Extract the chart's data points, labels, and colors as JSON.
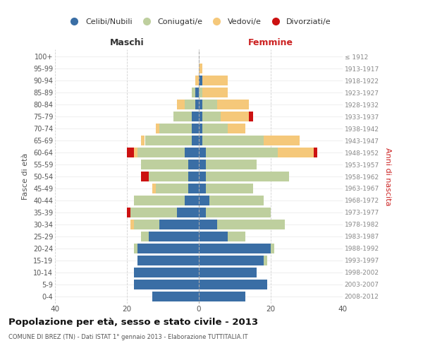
{
  "age_groups": [
    "0-4",
    "5-9",
    "10-14",
    "15-19",
    "20-24",
    "25-29",
    "30-34",
    "35-39",
    "40-44",
    "45-49",
    "50-54",
    "55-59",
    "60-64",
    "65-69",
    "70-74",
    "75-79",
    "80-84",
    "85-89",
    "90-94",
    "95-99",
    "100+"
  ],
  "birth_years": [
    "2008-2012",
    "2003-2007",
    "1998-2002",
    "1993-1997",
    "1988-1992",
    "1983-1987",
    "1978-1982",
    "1973-1977",
    "1968-1972",
    "1963-1967",
    "1958-1962",
    "1953-1957",
    "1948-1952",
    "1943-1947",
    "1938-1942",
    "1933-1937",
    "1928-1932",
    "1923-1927",
    "1918-1922",
    "1913-1917",
    "≤ 1912"
  ],
  "colors": {
    "celibi": "#3A6EA5",
    "coniugati": "#BECF9E",
    "vedovi": "#F5C87A",
    "divorziati": "#CC1111"
  },
  "maschi": {
    "celibi": [
      13,
      18,
      18,
      17,
      17,
      14,
      11,
      6,
      4,
      3,
      3,
      3,
      4,
      2,
      2,
      2,
      1,
      1,
      0,
      0,
      0
    ],
    "coniugati": [
      0,
      0,
      0,
      0,
      1,
      2,
      7,
      13,
      14,
      9,
      11,
      13,
      13,
      13,
      9,
      5,
      3,
      1,
      0,
      0,
      0
    ],
    "vedovi": [
      0,
      0,
      0,
      0,
      0,
      0,
      1,
      0,
      0,
      1,
      0,
      0,
      1,
      1,
      1,
      0,
      2,
      0,
      1,
      0,
      0
    ],
    "divorziati": [
      0,
      0,
      0,
      0,
      0,
      0,
      0,
      1,
      0,
      0,
      2,
      0,
      2,
      0,
      0,
      0,
      0,
      0,
      0,
      0,
      0
    ]
  },
  "femmine": {
    "celibi": [
      13,
      19,
      16,
      18,
      20,
      8,
      5,
      2,
      3,
      2,
      2,
      2,
      2,
      1,
      1,
      1,
      1,
      0,
      1,
      0,
      0
    ],
    "coniugati": [
      0,
      0,
      0,
      1,
      1,
      5,
      19,
      18,
      15,
      13,
      23,
      14,
      20,
      17,
      7,
      5,
      4,
      1,
      0,
      0,
      0
    ],
    "vedovi": [
      0,
      0,
      0,
      0,
      0,
      0,
      0,
      0,
      0,
      0,
      0,
      0,
      10,
      10,
      5,
      8,
      9,
      7,
      7,
      1,
      0
    ],
    "divorziati": [
      0,
      0,
      0,
      0,
      0,
      0,
      0,
      0,
      0,
      0,
      0,
      0,
      1,
      0,
      0,
      1,
      0,
      0,
      0,
      0,
      0
    ]
  },
  "title": "Popolazione per età, sesso e stato civile - 2013",
  "subtitle": "COMUNE DI BREZ (TN) - Dati ISTAT 1° gennaio 2013 - Elaborazione TUTTITALIA.IT",
  "xlabel_left": "Maschi",
  "xlabel_right": "Femmine",
  "ylabel_left": "Fasce di età",
  "ylabel_right": "Anni di nascita",
  "xlim": 40,
  "legend_labels": [
    "Celibi/Nubili",
    "Coniugati/e",
    "Vedovi/e",
    "Divorziati/e"
  ]
}
